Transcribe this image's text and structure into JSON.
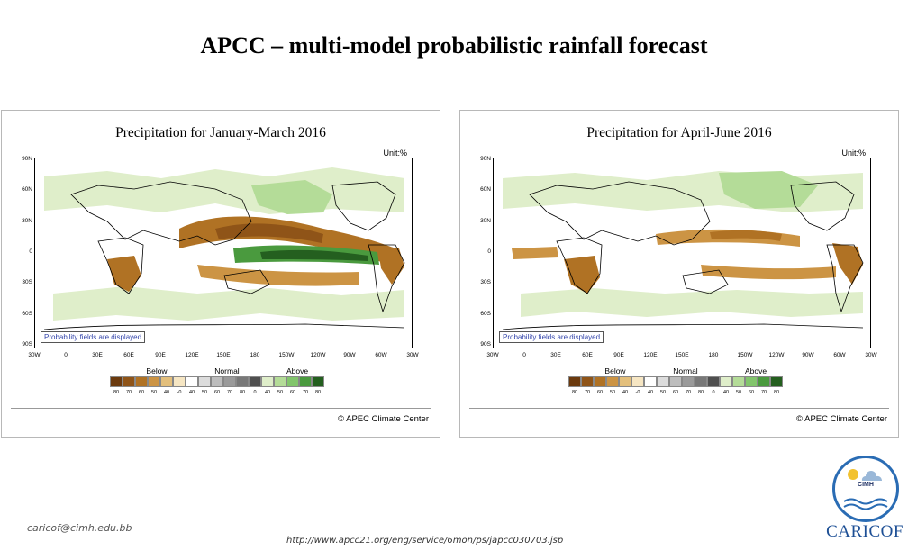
{
  "slide": {
    "title": "APCC – multi-model probabilistic rainfall forecast",
    "email": "caricof@cimh.edu.bb",
    "url": "http://www.apcc21.org/eng/service/6mon/ps/japcc030703.jsp",
    "logo_org": "CIMH",
    "logo_word": "CARICOF"
  },
  "chart_data": [
    {
      "type": "heatmap",
      "title": "Precipitation for January-March 2016",
      "unit": "Unit:%",
      "note": "Probability fields are displayed",
      "credit": "© APEC Climate Center",
      "lat_ticks": [
        "90N",
        "60N",
        "30N",
        "0",
        "30S",
        "60S",
        "90S"
      ],
      "lon_ticks": [
        "30W",
        "0",
        "30E",
        "60E",
        "90E",
        "120E",
        "150E",
        "180",
        "150W",
        "120W",
        "90W",
        "60W",
        "30W"
      ],
      "legend": {
        "categories": [
          "Below",
          "Normal",
          "Above"
        ],
        "ticks": [
          "80",
          "70",
          "60",
          "50",
          "40",
          "-0",
          "40",
          "50",
          "60",
          "70",
          "80",
          "0",
          "40",
          "50",
          "60",
          "70",
          "80"
        ],
        "colors": [
          "#6b3a0e",
          "#8f5418",
          "#b07224",
          "#cc9444",
          "#e3bf7c",
          "#f6e6c3",
          "#ffffff",
          "#dcdcdc",
          "#bdbdbd",
          "#9a9a9a",
          "#787878",
          "#4f4f4f",
          "#dfeeca",
          "#b4dc98",
          "#82c56c",
          "#4a9a3e",
          "#245f1f"
        ]
      },
      "regions": [
        {
          "label": "equatorial Pacific",
          "category": "Above",
          "probability": 80
        },
        {
          "label": "western Pacific / Maritime Continent",
          "category": "Below",
          "probability": 70
        },
        {
          "label": "southern Africa",
          "category": "Below",
          "probability": 60
        },
        {
          "label": "northern South America",
          "category": "Below",
          "probability": 60
        }
      ]
    },
    {
      "type": "heatmap",
      "title": "Precipitation for April-June 2016",
      "unit": "Unit:%",
      "note": "Probability fields are displayed",
      "credit": "© APEC Climate Center",
      "lat_ticks": [
        "90N",
        "60N",
        "30N",
        "0",
        "30S",
        "60S",
        "90S"
      ],
      "lon_ticks": [
        "30W",
        "0",
        "30E",
        "60E",
        "90E",
        "120E",
        "150E",
        "180",
        "150W",
        "120W",
        "90W",
        "60W",
        "30W"
      ],
      "legend": {
        "categories": [
          "Below",
          "Normal",
          "Above"
        ],
        "ticks": [
          "80",
          "70",
          "60",
          "50",
          "40",
          "-0",
          "40",
          "50",
          "60",
          "70",
          "80",
          "0",
          "40",
          "50",
          "60",
          "70",
          "80"
        ],
        "colors": [
          "#6b3a0e",
          "#8f5418",
          "#b07224",
          "#cc9444",
          "#e3bf7c",
          "#f6e6c3",
          "#ffffff",
          "#dcdcdc",
          "#bdbdbd",
          "#9a9a9a",
          "#787878",
          "#4f4f4f",
          "#dfeeca",
          "#b4dc98",
          "#82c56c",
          "#4a9a3e",
          "#245f1f"
        ]
      },
      "regions": [
        {
          "label": "tropical Pacific north of equator",
          "category": "Below",
          "probability": 60
        },
        {
          "label": "southern Africa",
          "category": "Below",
          "probability": 60
        },
        {
          "label": "northern South America",
          "category": "Below",
          "probability": 60
        },
        {
          "label": "South Pacific convergence zone",
          "category": "Below",
          "probability": 50
        }
      ]
    }
  ]
}
